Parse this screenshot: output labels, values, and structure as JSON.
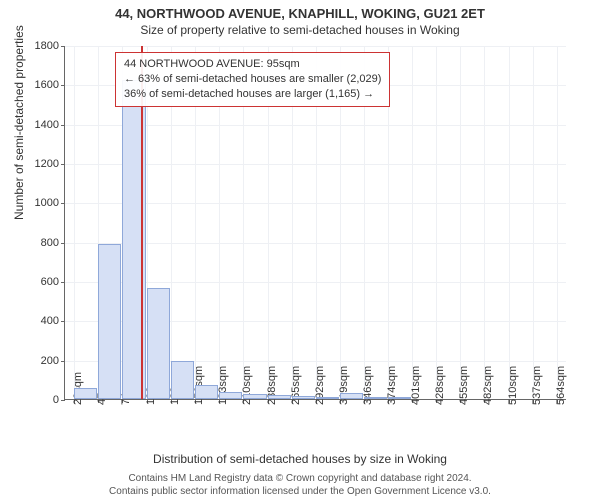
{
  "title": {
    "main": "44, NORTHWOOD AVENUE, KNAPHILL, WOKING, GU21 2ET",
    "sub": "Size of property relative to semi-detached houses in Woking"
  },
  "chart": {
    "type": "histogram",
    "background_color": "#ffffff",
    "grid_color": "#eef0f4",
    "axis_color": "#666666",
    "bar_fill": "#d6e0f5",
    "bar_border": "#8fa8d9",
    "ref_line_color": "#cc3333",
    "ref_line_x": 95,
    "xlim": [
      10,
      575
    ],
    "ylim": [
      0,
      1800
    ],
    "ytick_step": 200,
    "ylabel": "Number of semi-detached properties",
    "xlabel": "Distribution of semi-detached houses by size in Woking",
    "label_fontsize": 12,
    "tick_fontsize": 11,
    "yticks": [
      0,
      200,
      400,
      600,
      800,
      1000,
      1200,
      1400,
      1600,
      1800
    ],
    "xticks": [
      20,
      47,
      74,
      102,
      129,
      156,
      183,
      210,
      238,
      265,
      292,
      319,
      346,
      374,
      401,
      428,
      455,
      482,
      510,
      537,
      564
    ],
    "xtick_suffix": "sqm",
    "bars": [
      {
        "x0": 20,
        "x1": 47,
        "y": 55
      },
      {
        "x0": 47,
        "x1": 74,
        "y": 790
      },
      {
        "x0": 74,
        "x1": 102,
        "y": 1620
      },
      {
        "x0": 102,
        "x1": 129,
        "y": 565
      },
      {
        "x0": 129,
        "x1": 156,
        "y": 195
      },
      {
        "x0": 156,
        "x1": 183,
        "y": 70
      },
      {
        "x0": 183,
        "x1": 210,
        "y": 35
      },
      {
        "x0": 210,
        "x1": 238,
        "y": 25
      },
      {
        "x0": 238,
        "x1": 265,
        "y": 18
      },
      {
        "x0": 265,
        "x1": 292,
        "y": 14
      },
      {
        "x0": 292,
        "x1": 319,
        "y": 10
      },
      {
        "x0": 319,
        "x1": 346,
        "y": 30
      },
      {
        "x0": 346,
        "x1": 374,
        "y": 8
      },
      {
        "x0": 374,
        "x1": 401,
        "y": 4
      },
      {
        "x0": 401,
        "x1": 428,
        "y": 0
      },
      {
        "x0": 428,
        "x1": 455,
        "y": 0
      },
      {
        "x0": 455,
        "x1": 482,
        "y": 0
      },
      {
        "x0": 482,
        "x1": 510,
        "y": 0
      },
      {
        "x0": 510,
        "x1": 537,
        "y": 0
      },
      {
        "x0": 537,
        "x1": 564,
        "y": 0
      }
    ]
  },
  "annotation": {
    "border_color": "#cc3333",
    "lines": [
      "44 NORTHWOOD AVENUE: 95sqm",
      "← 63% of semi-detached houses are smaller (2,029)",
      "36% of semi-detached houses are larger (1,165) →"
    ]
  },
  "footer": {
    "line1": "Contains HM Land Registry data © Crown copyright and database right 2024.",
    "line2": "Contains public sector information licensed under the Open Government Licence v3.0."
  }
}
